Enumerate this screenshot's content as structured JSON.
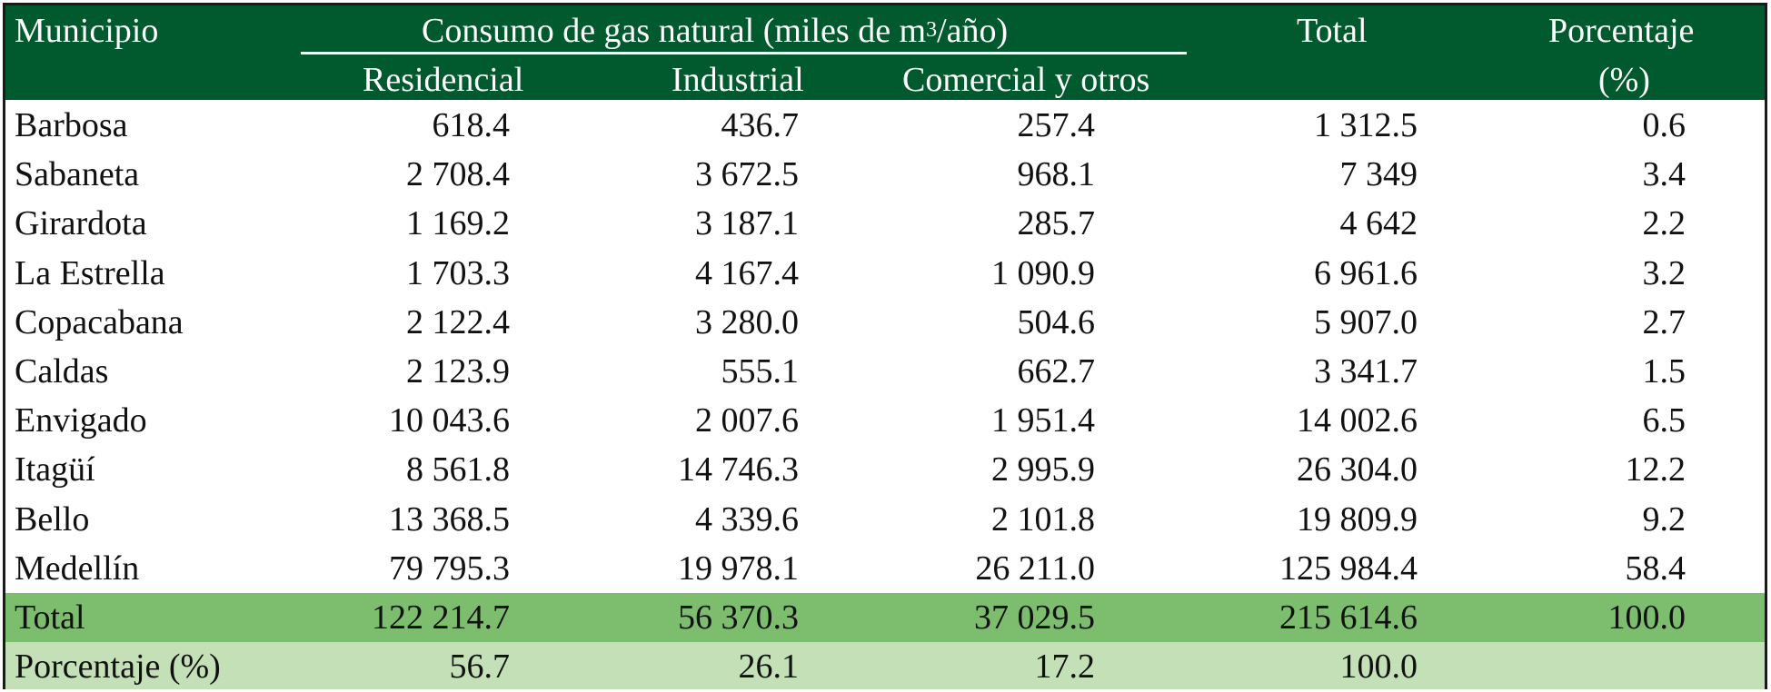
{
  "header": {
    "municipio": "Municipio",
    "group_title": "Consumo de gas natural (miles de m",
    "group_sup": "3",
    "group_tail": "/año)",
    "residencial": "Residencial",
    "industrial": "Industrial",
    "comercial": "Comercial y otros",
    "total": "Total",
    "porcentaje": "Porcentaje",
    "porcentaje_unit": "(%)"
  },
  "rows": [
    {
      "municipio": "Barbosa",
      "residencial": "618.4",
      "industrial": "436.7",
      "comercial": "257.4",
      "total": "1 312.5",
      "porcentaje": "0.6"
    },
    {
      "municipio": "Sabaneta",
      "residencial": "2 708.4",
      "industrial": "3 672.5",
      "comercial": "968.1",
      "total": "7 349",
      "porcentaje": "3.4"
    },
    {
      "municipio": "Girardota",
      "residencial": "1 169.2",
      "industrial": "3 187.1",
      "comercial": "285.7",
      "total": "4 642",
      "porcentaje": "2.2"
    },
    {
      "municipio": "La Estrella",
      "residencial": "1 703.3",
      "industrial": "4 167.4",
      "comercial": "1 090.9",
      "total": "6 961.6",
      "porcentaje": "3.2"
    },
    {
      "municipio": "Copacabana",
      "residencial": "2 122.4",
      "industrial": "3 280.0",
      "comercial": "504.6",
      "total": "5 907.0",
      "porcentaje": "2.7"
    },
    {
      "municipio": "Caldas",
      "residencial": "2 123.9",
      "industrial": "555.1",
      "comercial": "662.7",
      "total": "3 341.7",
      "porcentaje": "1.5"
    },
    {
      "municipio": "Envigado",
      "residencial": "10 043.6",
      "industrial": "2 007.6",
      "comercial": "1 951.4",
      "total": "14 002.6",
      "porcentaje": "6.5"
    },
    {
      "municipio": "Itagüí",
      "residencial": "8 561.8",
      "industrial": "14 746.3",
      "comercial": "2 995.9",
      "total": "26 304.0",
      "porcentaje": "12.2"
    },
    {
      "municipio": "Bello",
      "residencial": "13 368.5",
      "industrial": "4 339.6",
      "comercial": "2 101.8",
      "total": "19 809.9",
      "porcentaje": "9.2"
    },
    {
      "municipio": "Medellín",
      "residencial": "79 795.3",
      "industrial": "19 978.1",
      "comercial": "26 211.0",
      "total": "125 984.4",
      "porcentaje": "58.4"
    }
  ],
  "total_row": {
    "label": "Total",
    "residencial": "122 214.7",
    "industrial": "56 370.3",
    "comercial": "37 029.5",
    "total": "215 614.6",
    "porcentaje": "100.0"
  },
  "pct_row": {
    "label": "Porcentaje (%)",
    "residencial": "56.7",
    "industrial": "26.1",
    "comercial": "17.2",
    "total": "100.0"
  },
  "colors": {
    "header_bg": "#005a2e",
    "total_bg": "#7cbd6e",
    "pct_bg": "#c3e0b6"
  }
}
